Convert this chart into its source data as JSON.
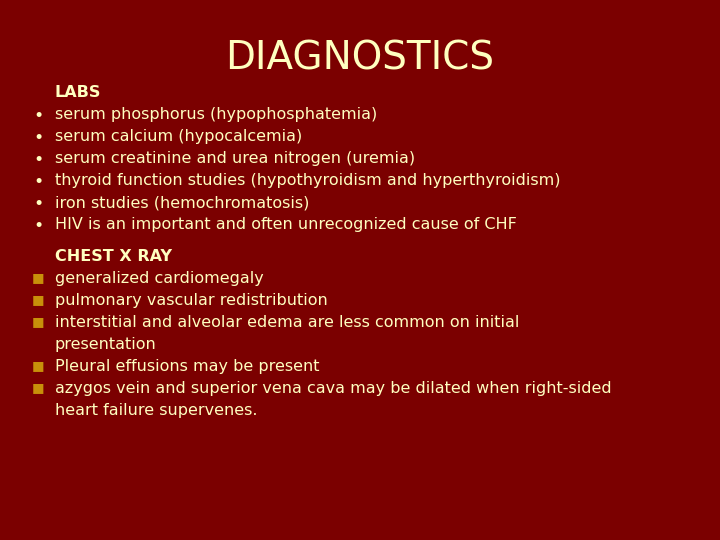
{
  "title": "DIAGNOSTICS",
  "bg_color": "#7B0000",
  "title_color": "#FFFFC0",
  "text_color": "#FFFFC0",
  "label_color": "#FFFFC0",
  "title_fontsize": 28,
  "label_fontsize": 11.5,
  "body_fontsize": 11.5,
  "labs_label": "LABS",
  "labs_items": [
    "serum phosphorus (hypophosphatemia)",
    "serum calcium (hypocalcemia)",
    "serum creatinine and urea nitrogen (uremia)",
    "thyroid function studies (hypothyroidism and hyperthyroidism)",
    "iron studies (hemochromatosis)",
    "HIV is an important and often unrecognized cause of CHF"
  ],
  "chest_label": "CHEST X RAY",
  "chest_items": [
    "generalized cardiomegaly",
    "pulmonary vascular redistribution",
    "interstitial and alveolar edema are less common on initial\n    presentation",
    "Pleural effusions may be present",
    "azygos vein and superior vena cava may be dilated when right-sided\n    heart failure supervenes."
  ],
  "bullet_color": "#FFFFC0",
  "square_color": "#C8900A"
}
